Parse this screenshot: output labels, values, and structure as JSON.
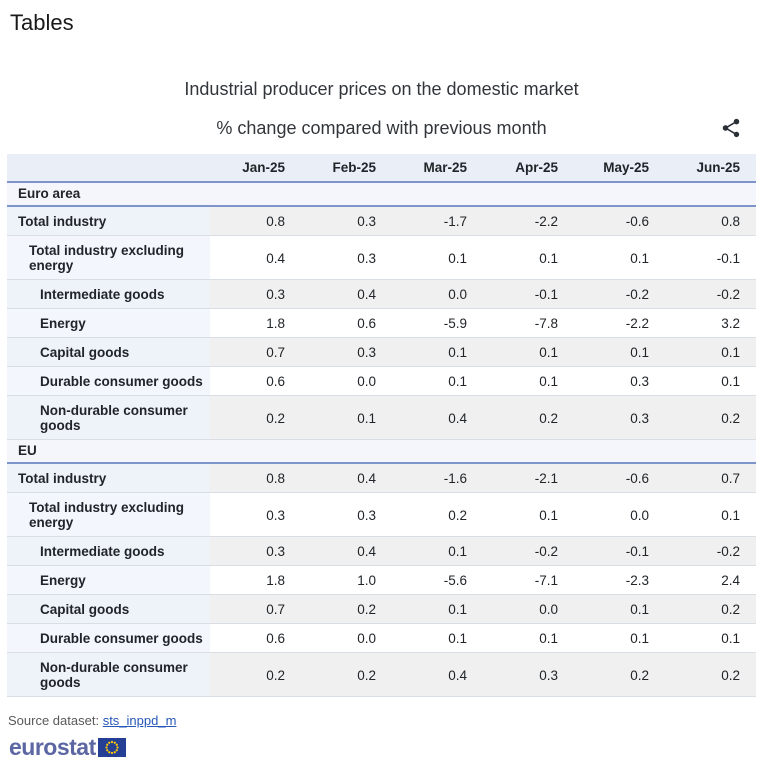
{
  "page": {
    "heading": "Tables"
  },
  "chart": {
    "title": "Industrial producer prices on the domestic market",
    "subtitle": "% change compared with previous month",
    "share_icon": "share-icon"
  },
  "table": {
    "columns": [
      "Jan-25",
      "Feb-25",
      "Mar-25",
      "Apr-25",
      "May-25",
      "Jun-25"
    ],
    "sections": [
      {
        "name": "Euro area",
        "rows": [
          {
            "label": "Total industry",
            "indent": 0,
            "values": [
              "0.8",
              "0.3",
              "-1.7",
              "-2.2",
              "-0.6",
              "0.8"
            ]
          },
          {
            "label": "Total industry excluding energy",
            "indent": 1,
            "values": [
              "0.4",
              "0.3",
              "0.1",
              "0.1",
              "0.1",
              "-0.1"
            ]
          },
          {
            "label": "Intermediate goods",
            "indent": 2,
            "values": [
              "0.3",
              "0.4",
              "0.0",
              "-0.1",
              "-0.2",
              "-0.2"
            ]
          },
          {
            "label": "Energy",
            "indent": 2,
            "values": [
              "1.8",
              "0.6",
              "-5.9",
              "-7.8",
              "-2.2",
              "3.2"
            ]
          },
          {
            "label": "Capital goods",
            "indent": 2,
            "values": [
              "0.7",
              "0.3",
              "0.1",
              "0.1",
              "0.1",
              "0.1"
            ]
          },
          {
            "label": "Durable consumer goods",
            "indent": 2,
            "values": [
              "0.6",
              "0.0",
              "0.1",
              "0.1",
              "0.3",
              "0.1"
            ]
          },
          {
            "label": "Non-durable consumer goods",
            "indent": 2,
            "values": [
              "0.2",
              "0.1",
              "0.4",
              "0.2",
              "0.3",
              "0.2"
            ]
          }
        ]
      },
      {
        "name": "EU",
        "rows": [
          {
            "label": "Total industry",
            "indent": 0,
            "values": [
              "0.8",
              "0.4",
              "-1.6",
              "-2.1",
              "-0.6",
              "0.7"
            ]
          },
          {
            "label": "Total industry excluding energy",
            "indent": 1,
            "values": [
              "0.3",
              "0.3",
              "0.2",
              "0.1",
              "0.0",
              "0.1"
            ]
          },
          {
            "label": "Intermediate goods",
            "indent": 2,
            "values": [
              "0.3",
              "0.4",
              "0.1",
              "-0.2",
              "-0.1",
              "-0.2"
            ]
          },
          {
            "label": "Energy",
            "indent": 2,
            "values": [
              "1.8",
              "1.0",
              "-5.6",
              "-7.1",
              "-2.3",
              "2.4"
            ]
          },
          {
            "label": "Capital goods",
            "indent": 2,
            "values": [
              "0.7",
              "0.2",
              "0.1",
              "0.0",
              "0.1",
              "0.2"
            ]
          },
          {
            "label": "Durable consumer goods",
            "indent": 2,
            "values": [
              "0.6",
              "0.0",
              "0.1",
              "0.1",
              "0.1",
              "0.1"
            ]
          },
          {
            "label": "Non-durable consumer goods",
            "indent": 2,
            "values": [
              "0.2",
              "0.2",
              "0.4",
              "0.3",
              "0.2",
              "0.2"
            ]
          }
        ]
      }
    ]
  },
  "footer": {
    "source_label": "Source dataset:",
    "source_link": "sts_inppd_m",
    "logo_text": "eurostat"
  },
  "colors": {
    "accent_border": "#7d95c8",
    "header_row_bg": "#e9eef7",
    "section_row_bg": "#f4f6fc",
    "odd_label_bg": "#eef2f9",
    "odd_value_bg": "#f0f0f0",
    "even_value_bg": "#ffffff",
    "link_blue": "#2758b9",
    "logo_blue": "#5b66a3",
    "flag_blue": "#243f94",
    "star_yellow": "#ffcc00",
    "text": "#212529"
  }
}
